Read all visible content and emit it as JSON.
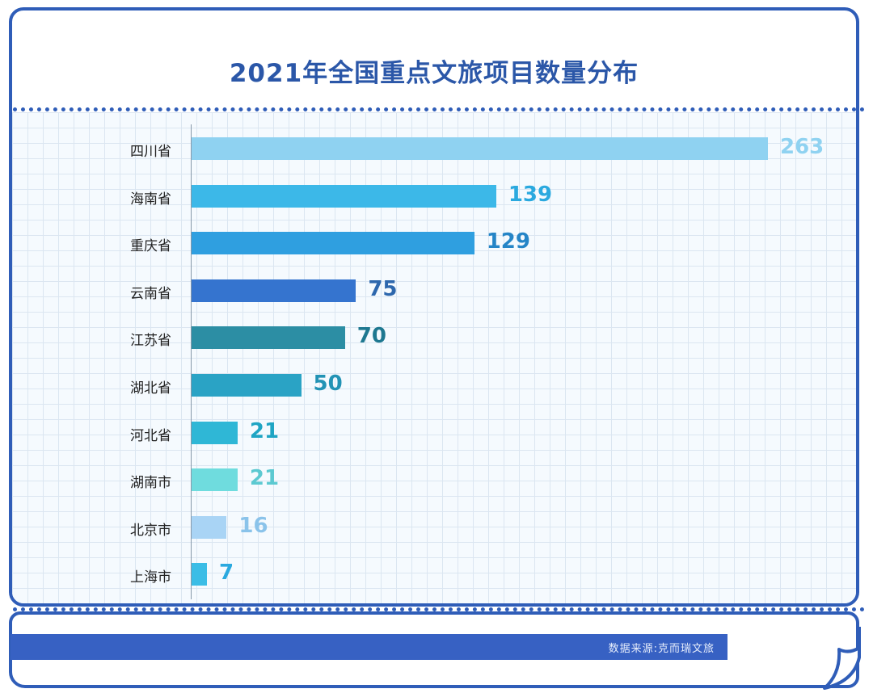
{
  "title": "2021年全国重点文旅项目数量分布",
  "source": "数据来源:克而瑞文旅",
  "chart_data": {
    "type": "bar",
    "orientation": "horizontal",
    "title": "2021年全国重点文旅项目数量分布",
    "categories": [
      "四川省",
      "海南省",
      "重庆省",
      "云南省",
      "江苏省",
      "湖北省",
      "河北省",
      "湖南市",
      "北京市",
      "上海市"
    ],
    "values": [
      263,
      139,
      129,
      75,
      70,
      50,
      21,
      21,
      16,
      7
    ],
    "bar_colors": [
      "#8fd2f1",
      "#3cb8e8",
      "#2f9fe0",
      "#3574cf",
      "#2c8ea4",
      "#2aa3c5",
      "#2fb7d6",
      "#6fdcde",
      "#a9d4f5",
      "#3bbde6"
    ],
    "label_colors": [
      "#8fd2f1",
      "#2aa9df",
      "#2585c7",
      "#2d67ad",
      "#1e7890",
      "#2293b5",
      "#1fa5c4",
      "#5cc9d1",
      "#8ac3ea",
      "#2aa9df"
    ],
    "xlim": [
      0,
      263
    ],
    "xlabel": "",
    "ylabel": ""
  }
}
